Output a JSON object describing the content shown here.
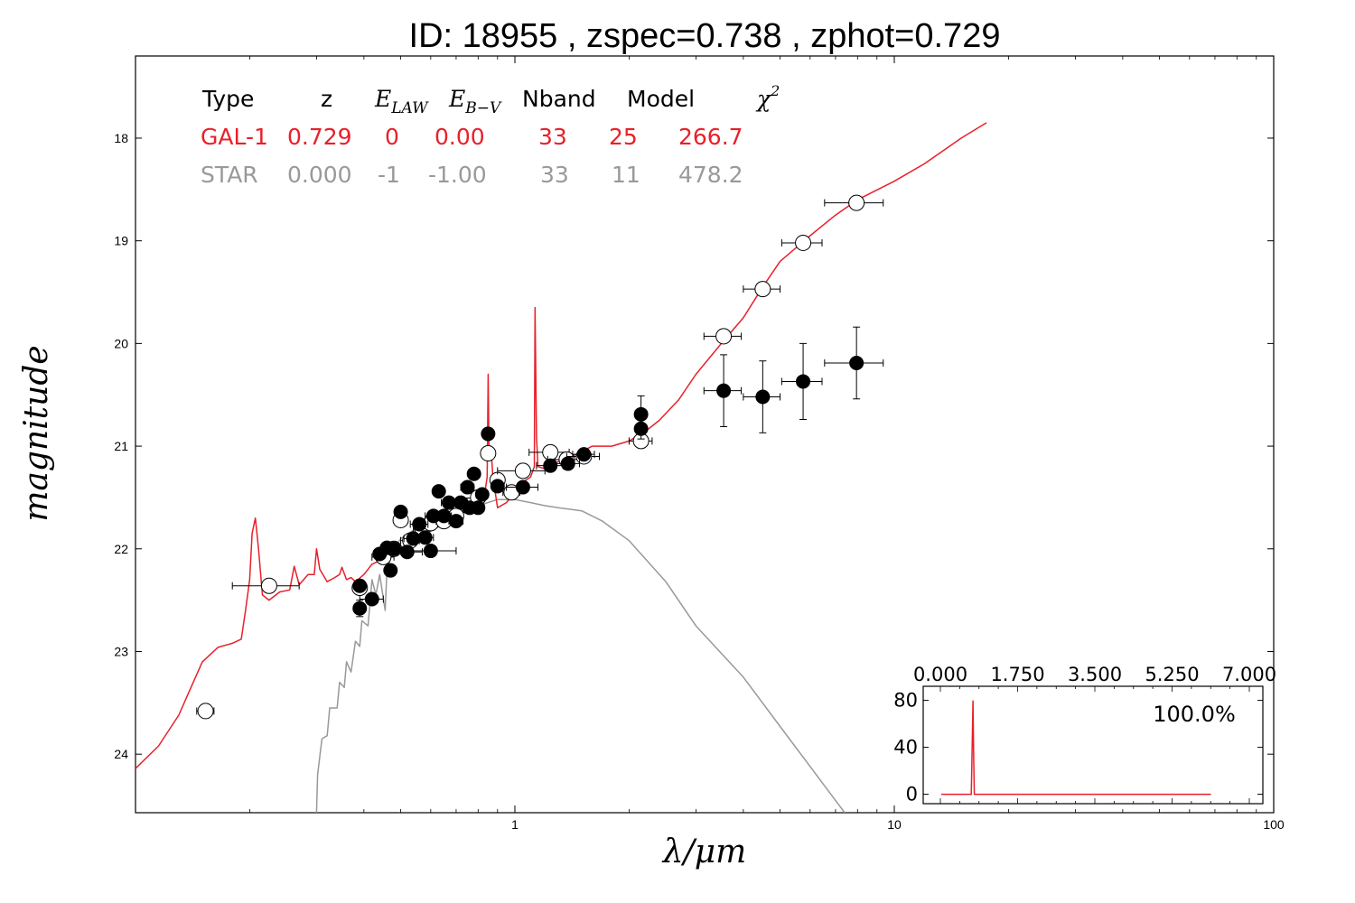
{
  "title": "ID:  18955 , zspec=0.738 , zphot=0.729",
  "colors": {
    "galaxy": "#e8202a",
    "star": "#999999",
    "axis": "#000000"
  },
  "table": {
    "headers": {
      "type": "Type",
      "z": "z",
      "elaw": "E",
      "elaw_sub": "LAW",
      "ebv": "E",
      "ebv_sub": "B−V",
      "nband": "Nband",
      "model": "Model",
      "chi": "χ",
      "chi_sup": "2"
    },
    "rows": [
      {
        "type": "GAL-1",
        "z": "0.729",
        "elaw": "0",
        "ebv": "0.00",
        "nband": "33",
        "model": "25",
        "chi2": "266.7",
        "color": "#e8202a"
      },
      {
        "type": "STAR",
        "z": "0.000",
        "elaw": "-1",
        "ebv": "-1.00",
        "nband": "33",
        "model": "11",
        "chi2": "478.2",
        "color": "#999999"
      }
    ]
  },
  "chart_data": [
    {
      "type": "scatter",
      "xlabel": "λ/μm",
      "ylabel": "magnitude",
      "xscale": "log",
      "xlim": [
        0.1,
        100
      ],
      "ylim": [
        24.57,
        17.2
      ],
      "y_inverted": true,
      "xticks": [
        1,
        10,
        100
      ],
      "xtick_labels": [
        "1",
        "10",
        "100"
      ],
      "yticks": [
        18,
        19,
        20,
        21,
        22,
        23,
        24
      ],
      "ytick_labels": [
        "18",
        "19",
        "20",
        "21",
        "22",
        "23",
        "24"
      ],
      "series": [
        {
          "name": "GAL-1",
          "kind": "line",
          "color": "#e8202a",
          "points": [
            [
              0.1,
              24.14
            ],
            [
              0.115,
              23.92
            ],
            [
              0.13,
              23.62
            ],
            [
              0.14,
              23.35
            ],
            [
              0.15,
              23.1
            ],
            [
              0.165,
              22.96
            ],
            [
              0.18,
              22.92
            ],
            [
              0.19,
              22.88
            ],
            [
              0.195,
              22.6
            ],
            [
              0.2,
              22.3
            ],
            [
              0.203,
              21.85
            ],
            [
              0.207,
              21.7
            ],
            [
              0.211,
              22.0
            ],
            [
              0.216,
              22.45
            ],
            [
              0.225,
              22.5
            ],
            [
              0.24,
              22.42
            ],
            [
              0.255,
              22.4
            ],
            [
              0.262,
              22.17
            ],
            [
              0.27,
              22.35
            ],
            [
              0.285,
              22.25
            ],
            [
              0.296,
              22.25
            ],
            [
              0.3,
              22.0
            ],
            [
              0.306,
              22.2
            ],
            [
              0.32,
              22.32
            ],
            [
              0.335,
              22.28
            ],
            [
              0.345,
              22.25
            ],
            [
              0.35,
              22.18
            ],
            [
              0.36,
              22.3
            ],
            [
              0.37,
              22.28
            ],
            [
              0.38,
              22.32
            ],
            [
              0.4,
              22.25
            ],
            [
              0.42,
              22.15
            ],
            [
              0.45,
              22.1
            ],
            [
              0.48,
              22.05
            ],
            [
              0.52,
              21.95
            ],
            [
              0.56,
              21.88
            ],
            [
              0.6,
              21.82
            ],
            [
              0.65,
              21.76
            ],
            [
              0.7,
              21.68
            ],
            [
              0.75,
              21.62
            ],
            [
              0.8,
              21.55
            ],
            [
              0.83,
              21.5
            ],
            [
              0.845,
              21.3
            ],
            [
              0.85,
              20.3
            ],
            [
              0.855,
              21.1
            ],
            [
              0.865,
              21.0
            ],
            [
              0.875,
              21.3
            ],
            [
              0.9,
              21.6
            ],
            [
              0.95,
              21.55
            ],
            [
              1.0,
              21.45
            ],
            [
              1.05,
              21.35
            ],
            [
              1.1,
              21.3
            ],
            [
              1.125,
              21.2
            ],
            [
              1.13,
              19.65
            ],
            [
              1.14,
              20.9
            ],
            [
              1.15,
              21.2
            ],
            [
              1.2,
              21.22
            ],
            [
              1.3,
              21.15
            ],
            [
              1.45,
              21.08
            ],
            [
              1.6,
              21.0
            ],
            [
              1.8,
              21.0
            ],
            [
              2.0,
              20.95
            ],
            [
              2.2,
              20.86
            ],
            [
              2.4,
              20.75
            ],
            [
              2.7,
              20.55
            ],
            [
              3.0,
              20.3
            ],
            [
              3.5,
              20.0
            ],
            [
              4.0,
              19.75
            ],
            [
              4.5,
              19.45
            ],
            [
              5.0,
              19.2
            ],
            [
              6.0,
              18.95
            ],
            [
              7.0,
              18.75
            ],
            [
              8.0,
              18.6
            ],
            [
              10.0,
              18.42
            ],
            [
              12.0,
              18.25
            ],
            [
              15.0,
              18.0
            ],
            [
              17.5,
              17.85
            ]
          ]
        },
        {
          "name": "STAR",
          "kind": "line",
          "color": "#999999",
          "points": [
            [
              0.3,
              24.57
            ],
            [
              0.302,
              24.2
            ],
            [
              0.31,
              23.85
            ],
            [
              0.32,
              23.82
            ],
            [
              0.325,
              23.55
            ],
            [
              0.34,
              23.55
            ],
            [
              0.345,
              23.3
            ],
            [
              0.355,
              23.35
            ],
            [
              0.36,
              23.1
            ],
            [
              0.37,
              23.2
            ],
            [
              0.38,
              22.9
            ],
            [
              0.39,
              22.95
            ],
            [
              0.395,
              22.7
            ],
            [
              0.41,
              22.75
            ],
            [
              0.42,
              22.3
            ],
            [
              0.43,
              22.45
            ],
            [
              0.44,
              22.25
            ],
            [
              0.455,
              22.6
            ],
            [
              0.46,
              22.2
            ],
            [
              0.48,
              22.0
            ],
            [
              0.5,
              21.9
            ],
            [
              0.55,
              21.8
            ],
            [
              0.6,
              21.73
            ],
            [
              0.65,
              21.68
            ],
            [
              0.7,
              21.63
            ],
            [
              0.8,
              21.58
            ],
            [
              0.9,
              21.52
            ],
            [
              1.0,
              21.52
            ],
            [
              1.1,
              21.55
            ],
            [
              1.2,
              21.58
            ],
            [
              1.3,
              21.6
            ],
            [
              1.5,
              21.63
            ],
            [
              1.7,
              21.73
            ],
            [
              2.0,
              21.92
            ],
            [
              2.5,
              22.32
            ],
            [
              3.0,
              22.75
            ],
            [
              4.0,
              23.25
            ],
            [
              5.0,
              23.73
            ],
            [
              6.0,
              24.12
            ],
            [
              7.0,
              24.45
            ],
            [
              7.4,
              24.57
            ]
          ]
        },
        {
          "name": "model magnitudes",
          "kind": "open-points",
          "points": [
            [
              0.153,
              23.58
            ],
            [
              0.225,
              22.36
            ],
            [
              0.39,
              22.38
            ],
            [
              0.45,
              22.08
            ],
            [
              0.48,
              22.0
            ],
            [
              0.5,
              21.72
            ],
            [
              0.53,
              21.92
            ],
            [
              0.57,
              21.8
            ],
            [
              0.6,
              21.75
            ],
            [
              0.65,
              21.73
            ],
            [
              0.7,
              21.68
            ],
            [
              0.75,
              21.58
            ],
            [
              0.8,
              21.5
            ],
            [
              0.85,
              21.07
            ],
            [
              0.9,
              21.33
            ],
            [
              0.98,
              21.45
            ],
            [
              1.05,
              21.24
            ],
            [
              1.24,
              21.06
            ],
            [
              1.37,
              21.13
            ],
            [
              1.52,
              21.1
            ],
            [
              2.15,
              20.95
            ],
            [
              3.55,
              19.93
            ],
            [
              4.5,
              19.47
            ],
            [
              5.75,
              19.02
            ],
            [
              7.95,
              18.63
            ]
          ],
          "xerr": [
            0.008,
            0.045,
            0.0,
            0.03,
            0.02,
            0.0,
            0.03,
            0.03,
            0.03,
            0.03,
            0.03,
            0.03,
            0.03,
            0.0,
            0.03,
            0.05,
            0.15,
            0.15,
            0.15,
            0.15,
            0.15,
            0.4,
            0.5,
            0.7,
            1.4
          ]
        },
        {
          "name": "observed magnitudes",
          "kind": "filled-points",
          "points": [
            [
              0.39,
              22.36
            ],
            [
              0.39,
              22.58
            ],
            [
              0.42,
              22.49
            ],
            [
              0.44,
              22.05
            ],
            [
              0.46,
              21.99
            ],
            [
              0.47,
              22.21
            ],
            [
              0.48,
              22.0
            ],
            [
              0.5,
              21.64
            ],
            [
              0.52,
              22.03
            ],
            [
              0.54,
              21.9
            ],
            [
              0.56,
              21.76
            ],
            [
              0.58,
              21.89
            ],
            [
              0.6,
              22.02
            ],
            [
              0.61,
              21.68
            ],
            [
              0.63,
              21.44
            ],
            [
              0.65,
              21.68
            ],
            [
              0.67,
              21.55
            ],
            [
              0.7,
              21.73
            ],
            [
              0.72,
              21.55
            ],
            [
              0.75,
              21.4
            ],
            [
              0.76,
              21.6
            ],
            [
              0.78,
              21.27
            ],
            [
              0.8,
              21.6
            ],
            [
              0.82,
              21.47
            ],
            [
              0.85,
              20.88
            ],
            [
              0.9,
              21.39
            ],
            [
              1.05,
              21.4
            ],
            [
              1.24,
              21.19
            ],
            [
              1.38,
              21.17
            ],
            [
              1.52,
              21.08
            ],
            [
              2.15,
              20.69
            ],
            [
              2.15,
              20.83
            ],
            [
              3.55,
              20.46
            ],
            [
              4.5,
              20.52
            ],
            [
              5.75,
              20.37
            ],
            [
              7.95,
              20.19
            ]
          ],
          "xerr": [
            0.0,
            0.0,
            0.03,
            0.0,
            0.0,
            0.0,
            0.0,
            0.0,
            0.05,
            0.03,
            0.03,
            0.03,
            0.1,
            0.03,
            0.0,
            0.03,
            0.03,
            0.03,
            0.03,
            0.03,
            0.03,
            0.0,
            0.03,
            0.03,
            0.0,
            0.03,
            0.1,
            0.1,
            0.1,
            0.1,
            0.0,
            0.0,
            0.4,
            0.5,
            0.7,
            1.4
          ],
          "yerr": [
            0.06,
            0.08,
            0.0,
            0.0,
            0.0,
            0.0,
            0.0,
            0.0,
            0.0,
            0.0,
            0.0,
            0.0,
            0.0,
            0.0,
            0.0,
            0.0,
            0.0,
            0.0,
            0.0,
            0.0,
            0.0,
            0.0,
            0.0,
            0.0,
            0.0,
            0.0,
            0.0,
            0.05,
            0.05,
            0.05,
            0.18,
            0.1,
            0.35,
            0.35,
            0.37,
            0.35
          ]
        }
      ]
    },
    {
      "type": "line",
      "inset": true,
      "xlim": [
        0,
        7
      ],
      "ylim": [
        -8,
        92
      ],
      "xticks": [
        0,
        1.75,
        3.5,
        5.25,
        7
      ],
      "xtick_labels": [
        "0.000",
        "1.750",
        "3.500",
        "5.250",
        "7.000"
      ],
      "yticks": [
        0,
        40,
        80
      ],
      "ytick_labels": [
        "0",
        "40",
        "80"
      ],
      "annotation": "100.0%",
      "series": [
        {
          "name": "PDF",
          "color": "#e8202a",
          "points": [
            [
              0.0,
              0
            ],
            [
              0.69,
              0
            ],
            [
              0.71,
              40
            ],
            [
              0.729,
              80
            ],
            [
              0.745,
              30
            ],
            [
              0.76,
              0
            ],
            [
              6.2,
              0
            ]
          ]
        }
      ]
    }
  ]
}
